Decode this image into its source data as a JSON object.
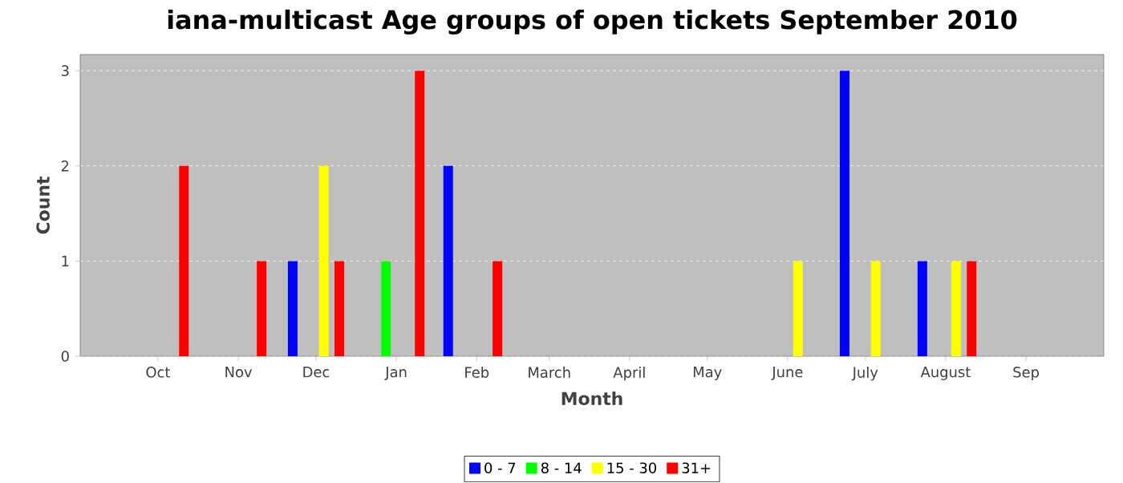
{
  "chart_data": {
    "type": "bar",
    "title": "iana-multicast Age groups of open tickets September 2010",
    "xlabel": "Month",
    "ylabel": "Count",
    "series": [
      {
        "name": "0 - 7",
        "color": "#0000ff",
        "x": [
          "2009-11-22",
          "2010-01-21",
          "2010-06-23",
          "2010-07-23"
        ],
        "values": [
          1,
          2,
          3,
          1
        ]
      },
      {
        "name": "8 - 14",
        "color": "#00ff00",
        "x": [
          "2009-12-28"
        ],
        "values": [
          1
        ]
      },
      {
        "name": "15 - 30",
        "color": "#ffff00",
        "x": [
          "2009-12-04",
          "2010-06-05",
          "2010-07-05",
          "2010-08-05"
        ],
        "values": [
          2,
          1,
          1,
          1
        ]
      },
      {
        "name": "31+",
        "color": "#ff0000",
        "x": [
          "2009-10-11",
          "2009-11-10",
          "2009-12-10",
          "2010-01-10",
          "2010-02-09",
          "2010-08-11"
        ],
        "values": [
          2,
          1,
          1,
          3,
          1,
          1
        ]
      }
    ],
    "xlim": [
      "2009-09-01",
      "2010-10-01"
    ],
    "xticks": [
      {
        "value": "2009-10-01",
        "label": "Oct"
      },
      {
        "value": "2009-11-01",
        "label": "Nov"
      },
      {
        "value": "2009-12-01",
        "label": "Dec"
      },
      {
        "value": "2010-01-01",
        "label": "Jan"
      },
      {
        "value": "2010-02-01",
        "label": "Feb"
      },
      {
        "value": "2010-03-01",
        "label": "March"
      },
      {
        "value": "2010-04-01",
        "label": "April"
      },
      {
        "value": "2010-05-01",
        "label": "May"
      },
      {
        "value": "2010-06-01",
        "label": "June"
      },
      {
        "value": "2010-07-01",
        "label": "July"
      },
      {
        "value": "2010-08-01",
        "label": "August"
      },
      {
        "value": "2010-09-01",
        "label": "Sep"
      }
    ],
    "ylim": [
      0,
      3.17
    ],
    "yticks": [
      0,
      1,
      2,
      3
    ],
    "grid": "y",
    "legend": "bottom"
  }
}
